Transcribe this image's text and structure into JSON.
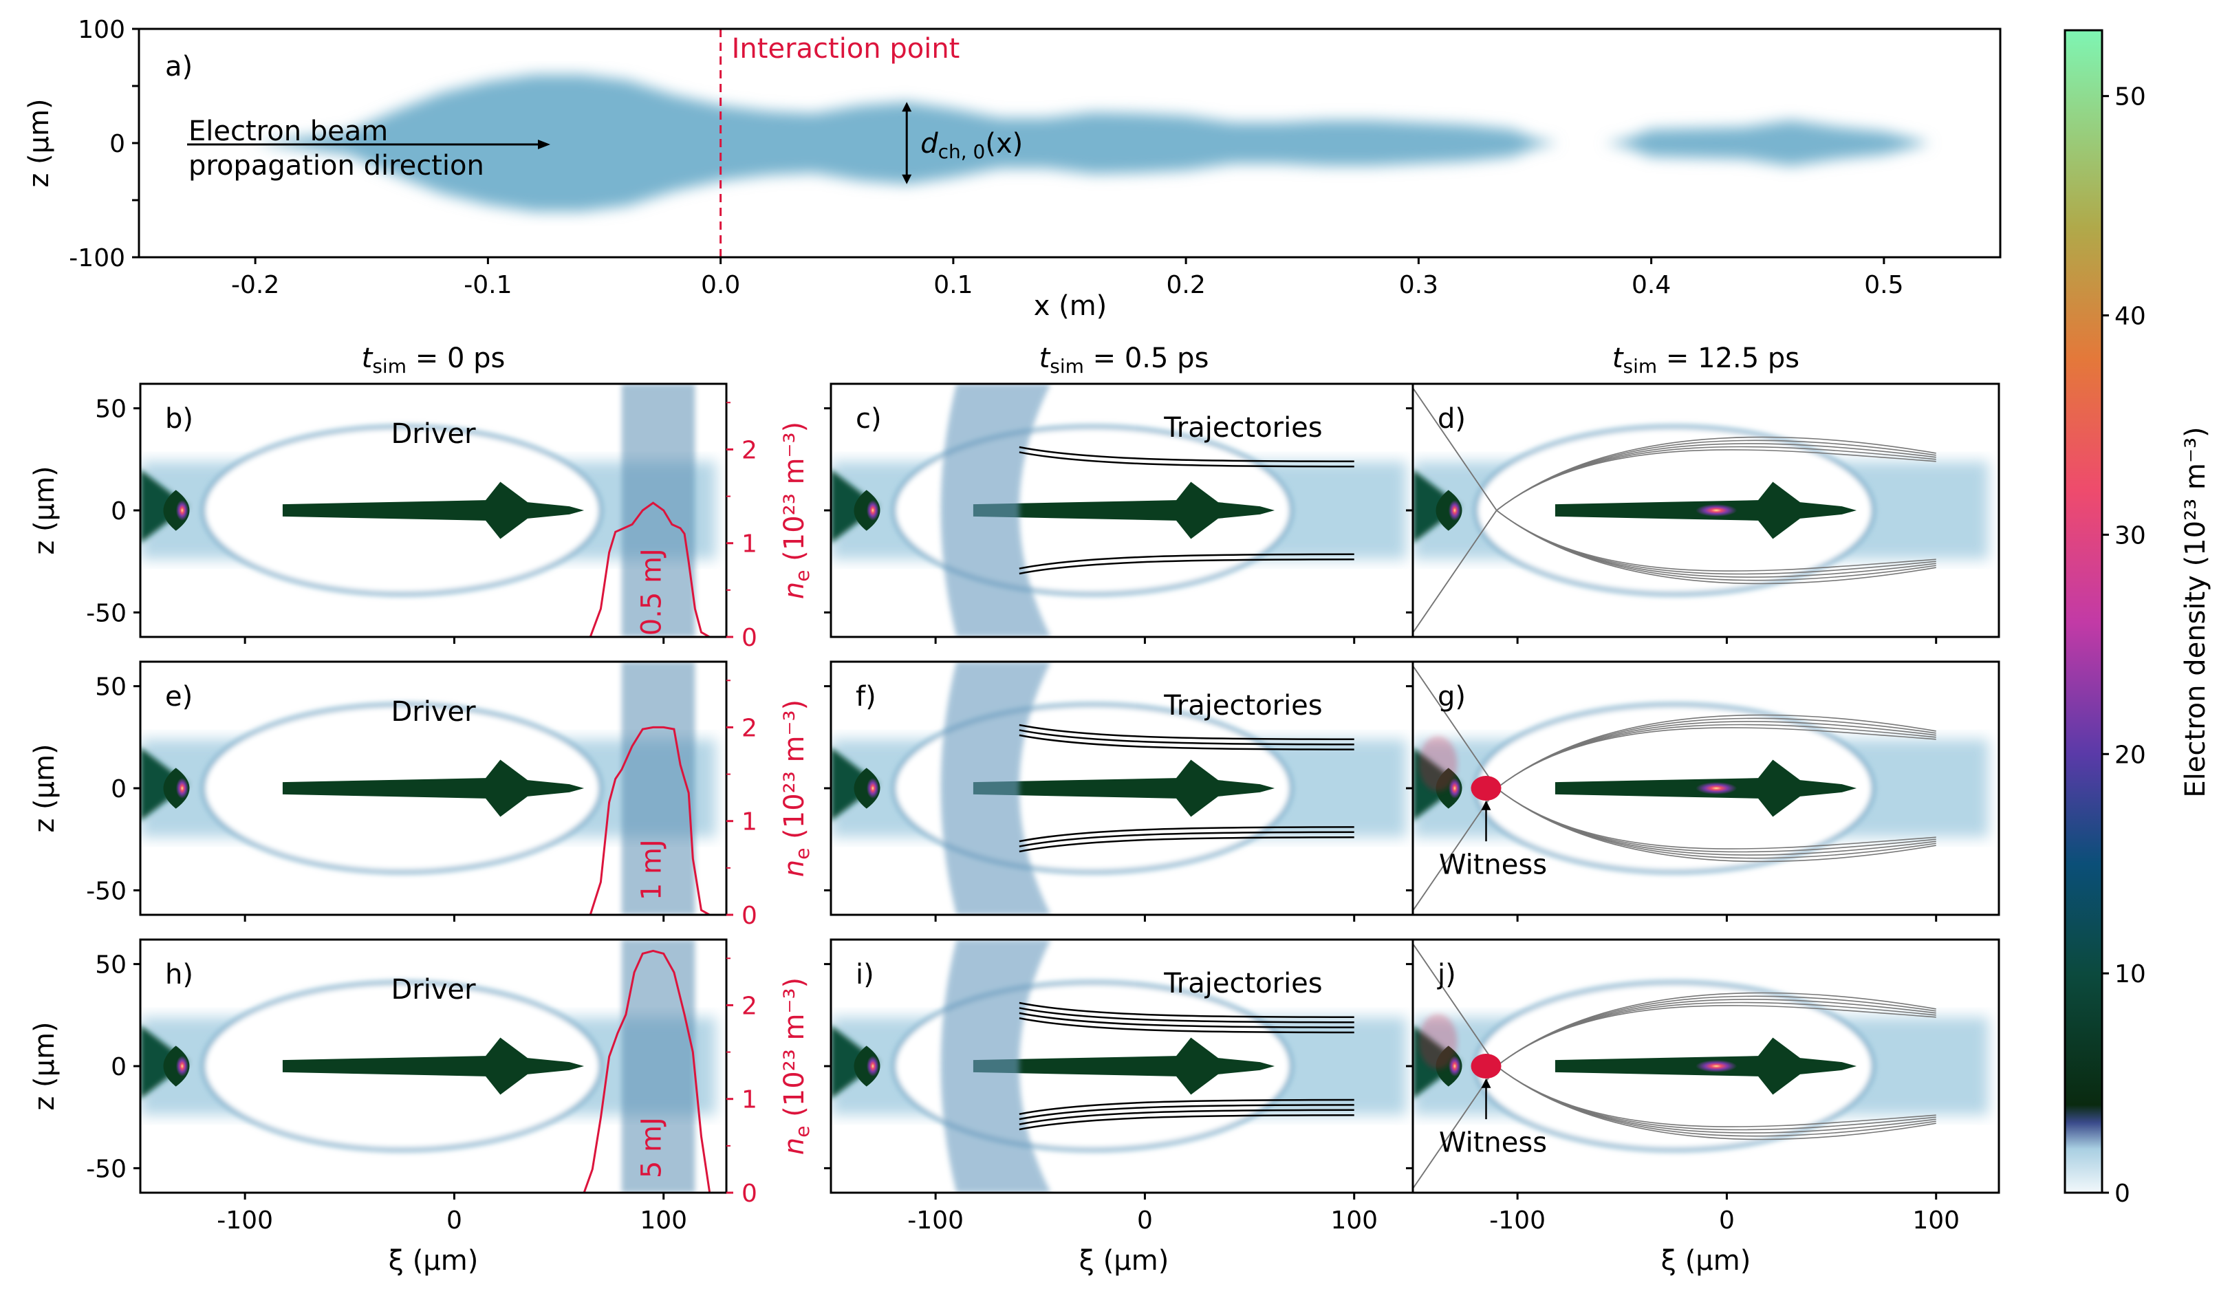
{
  "chart_data": [
    {
      "id": "a",
      "type": "heatmap",
      "title": "",
      "panel_letter": "a)",
      "xlabel": "x (m)",
      "ylabel": "z (µm)",
      "xlim": [
        -0.25,
        0.55
      ],
      "ylim": [
        -100,
        100
      ],
      "x_ticks": [
        -0.2,
        -0.1,
        0.0,
        0.1,
        0.2,
        0.3,
        0.4,
        0.5
      ],
      "x_tick_labels": [
        "-0.2",
        "-0.1",
        "0.0",
        "0.1",
        "0.2",
        "0.3",
        "0.4",
        "0.5"
      ],
      "y_ticks": [
        -100,
        0,
        100
      ],
      "y_tick_labels": [
        "-100",
        "0",
        "100"
      ],
      "channel_profile": {
        "x": [
          -0.2,
          -0.16,
          -0.14,
          -0.12,
          -0.1,
          -0.08,
          -0.06,
          -0.04,
          -0.02,
          0.0,
          0.02,
          0.04,
          0.06,
          0.08,
          0.1,
          0.12,
          0.14,
          0.16,
          0.18,
          0.2,
          0.22,
          0.24,
          0.26,
          0.28,
          0.3,
          0.32,
          0.34,
          0.35,
          0.36,
          0.38,
          0.39,
          0.4,
          0.42,
          0.44,
          0.46,
          0.48,
          0.5,
          0.52
        ],
        "half_width_um": [
          0,
          10,
          28,
          44,
          54,
          60,
          60,
          55,
          42,
          33,
          28,
          26,
          33,
          36,
          30,
          22,
          22,
          27,
          26,
          24,
          18,
          18,
          20,
          20,
          18,
          16,
          12,
          4,
          0,
          0,
          4,
          12,
          13,
          14,
          20,
          14,
          10,
          0
        ]
      },
      "annotations": {
        "interaction_point_x": 0.0,
        "interaction_point_label": "Interaction point",
        "beam_label_line1": "Electron beam",
        "beam_label_line2": "propagation direction",
        "diameter_label": "d",
        "diameter_label_sub": "ch, 0",
        "diameter_label_tail": "(x)",
        "diameter_marker_x": 0.08
      }
    },
    {
      "id": "density_grid",
      "type": "heatmap",
      "xlabel": "ξ (µm)",
      "ylabel": "z (µm)",
      "right_ylabel": "n",
      "right_ylabel_sub": "e",
      "right_ylabel_tail": "(10²³ m⁻³)",
      "xlim": [
        -150,
        130
      ],
      "ylim": [
        -62,
        62
      ],
      "x_ticks": [
        -100,
        0,
        100
      ],
      "x_tick_labels": [
        "-100",
        "0",
        "100"
      ],
      "y_ticks": [
        -50,
        0,
        50
      ],
      "y_tick_labels": [
        "-50",
        "0",
        "50"
      ],
      "right_ylim": [
        0,
        2.7
      ],
      "right_y_ticks": [
        0,
        1,
        2
      ],
      "right_y_tick_labels": [
        "0",
        "1",
        "2"
      ],
      "column_titles": [
        {
          "prefix": "t",
          "sub": "sim",
          "value": " =  0 ps"
        },
        {
          "prefix": "t",
          "sub": "sim",
          "value": " = 0.5 ps"
        },
        {
          "prefix": "t",
          "sub": "sim",
          "value": " = 12.5 ps"
        }
      ],
      "panels": [
        {
          "letter": "b)",
          "row": 0,
          "col": 0,
          "label": "Driver",
          "energy": "0.5 mJ",
          "density_profile": {
            "xi_um": [
              65,
              70,
              74,
              77,
              80,
              85,
              90,
              95,
              100,
              104,
              108,
              110,
              112,
              115,
              118,
              122
            ],
            "ne": [
              0,
              0.3,
              0.9,
              1.12,
              1.15,
              1.2,
              1.35,
              1.43,
              1.35,
              1.2,
              1.16,
              1.1,
              0.8,
              0.3,
              0.05,
              0
            ]
          }
        },
        {
          "letter": "e)",
          "row": 1,
          "col": 0,
          "label": "Driver",
          "energy": "1 mJ",
          "density_profile": {
            "xi_um": [
              65,
              70,
              74,
              77,
              80,
              85,
              90,
              95,
              100,
              105,
              108,
              110,
              112,
              114,
              118,
              122
            ],
            "ne": [
              0,
              0.35,
              1.2,
              1.45,
              1.55,
              1.8,
              1.98,
              2.0,
              2.0,
              1.98,
              1.6,
              1.45,
              1.3,
              0.6,
              0.05,
              0
            ]
          }
        },
        {
          "letter": "h)",
          "row": 2,
          "col": 0,
          "label": "Driver",
          "energy": "5 mJ",
          "density_profile": {
            "xi_um": [
              62,
              66,
              70,
              74,
              78,
              82,
              86,
              90,
              95,
              100,
              105,
              110,
              114,
              118,
              122
            ],
            "ne": [
              0,
              0.25,
              0.8,
              1.45,
              1.7,
              1.9,
              2.35,
              2.55,
              2.58,
              2.55,
              2.35,
              1.9,
              1.5,
              0.6,
              0
            ]
          }
        },
        {
          "letter": "c)",
          "row": 0,
          "col": 1,
          "label": "Trajectories"
        },
        {
          "letter": "f)",
          "row": 1,
          "col": 1,
          "label": "Trajectories"
        },
        {
          "letter": "i)",
          "row": 2,
          "col": 1,
          "label": "Trajectories"
        },
        {
          "letter": "d)",
          "row": 0,
          "col": 2,
          "label": ""
        },
        {
          "letter": "g)",
          "row": 1,
          "col": 2,
          "label": "Witness",
          "witness_xi_um": -115
        },
        {
          "letter": "j)",
          "row": 2,
          "col": 2,
          "label": "Witness",
          "witness_xi_um": -115
        }
      ]
    },
    {
      "id": "colorbar",
      "type": "heatmap",
      "label": "Electron density (10²³ m⁻³)",
      "range": [
        0,
        53
      ],
      "ticks": [
        0,
        10,
        20,
        30,
        40,
        50
      ],
      "tick_labels": [
        "0",
        "10",
        "20",
        "30",
        "40",
        "50"
      ],
      "colormap_stops": [
        {
          "value": 0,
          "color": "#f2f8fb"
        },
        {
          "value": 2,
          "color": "#a9cfe2"
        },
        {
          "value": 3.2,
          "color": "#3a4a8a"
        },
        {
          "value": 4,
          "color": "#0a2a10"
        },
        {
          "value": 10,
          "color": "#0c4a3e"
        },
        {
          "value": 15,
          "color": "#0b4f78"
        },
        {
          "value": 20,
          "color": "#5a3aa8"
        },
        {
          "value": 26,
          "color": "#c23aa6"
        },
        {
          "value": 32,
          "color": "#ee4b6d"
        },
        {
          "value": 38,
          "color": "#e4783a"
        },
        {
          "value": 44,
          "color": "#b0a94a"
        },
        {
          "value": 53,
          "color": "#7ef5b3"
        }
      ]
    }
  ],
  "colors": {
    "accent_red": "#dc143c",
    "plasma_blue": "#79b4cf",
    "driver_green": "#0a3d1f"
  }
}
